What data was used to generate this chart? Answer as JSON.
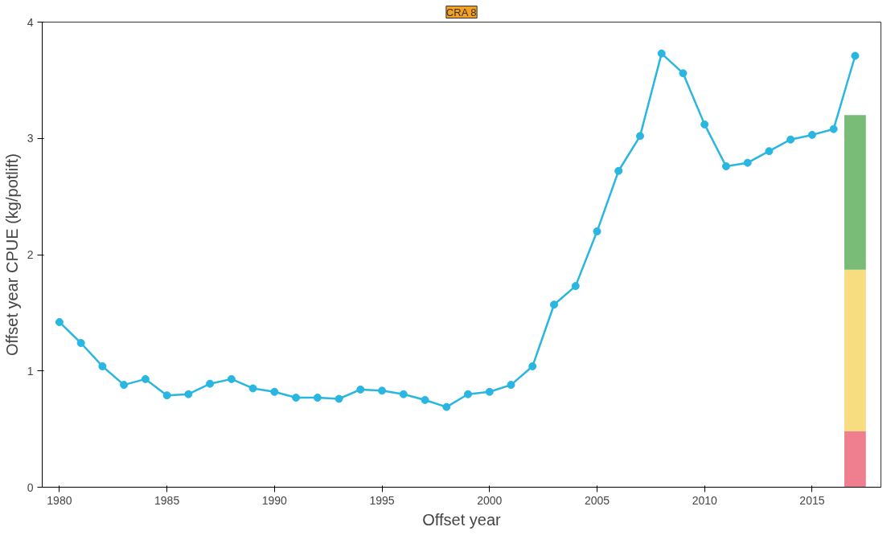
{
  "chart_data": {
    "type": "line",
    "title": "CRA 8",
    "xlabel": "Offset year",
    "ylabel": "Offset year CPUE (kg/potlift)",
    "x": [
      1980,
      1981,
      1982,
      1983,
      1984,
      1985,
      1986,
      1987,
      1988,
      1989,
      1990,
      1991,
      1992,
      1993,
      1994,
      1995,
      1996,
      1997,
      1998,
      1999,
      2000,
      2001,
      2002,
      2003,
      2004,
      2005,
      2006,
      2007,
      2008,
      2009,
      2010,
      2011,
      2012,
      2013,
      2014,
      2015,
      2016,
      2017
    ],
    "series": [
      {
        "type": "line",
        "color": "#29b6e0",
        "values": [
          1.42,
          1.24,
          1.04,
          0.88,
          0.93,
          0.79,
          0.8,
          0.89,
          0.93,
          0.85,
          0.82,
          0.77,
          0.77,
          0.76,
          0.84,
          0.83,
          0.8,
          0.75,
          0.69,
          0.8,
          0.82,
          0.88,
          1.04,
          1.57,
          1.73,
          2.2,
          2.72,
          3.02,
          3.73,
          3.56,
          3.12,
          2.76,
          2.79,
          2.89,
          2.99,
          3.03,
          3.08,
          3.71
        ]
      },
      {
        "type": "bar",
        "color": "#ef7f8f",
        "base": [
          null,
          null,
          null,
          null,
          null,
          null,
          null,
          null,
          null,
          null,
          null,
          null,
          null,
          null,
          null,
          null,
          null,
          null,
          null,
          null,
          null,
          null,
          null,
          null,
          null,
          null,
          null,
          null,
          null,
          null,
          null,
          null,
          null,
          null,
          null,
          null,
          null,
          0
        ],
        "values": [
          null,
          null,
          null,
          null,
          null,
          null,
          null,
          null,
          null,
          null,
          null,
          null,
          null,
          null,
          null,
          null,
          null,
          null,
          null,
          null,
          null,
          null,
          null,
          null,
          null,
          null,
          null,
          null,
          null,
          null,
          null,
          null,
          null,
          null,
          null,
          null,
          null,
          0.48
        ]
      },
      {
        "type": "bar",
        "color": "#f8dc80",
        "base": [
          null,
          null,
          null,
          null,
          null,
          null,
          null,
          null,
          null,
          null,
          null,
          null,
          null,
          null,
          null,
          null,
          null,
          null,
          null,
          null,
          null,
          null,
          null,
          null,
          null,
          null,
          null,
          null,
          null,
          null,
          null,
          null,
          null,
          null,
          null,
          null,
          null,
          0.48
        ],
        "values": [
          null,
          null,
          null,
          null,
          null,
          null,
          null,
          null,
          null,
          null,
          null,
          null,
          null,
          null,
          null,
          null,
          null,
          null,
          null,
          null,
          null,
          null,
          null,
          null,
          null,
          null,
          null,
          null,
          null,
          null,
          null,
          null,
          null,
          null,
          null,
          null,
          null,
          1.39
        ]
      },
      {
        "type": "bar",
        "color": "#78bc78",
        "base": [
          null,
          null,
          null,
          null,
          null,
          null,
          null,
          null,
          null,
          null,
          null,
          null,
          null,
          null,
          null,
          null,
          null,
          null,
          null,
          null,
          null,
          null,
          null,
          null,
          null,
          null,
          null,
          null,
          null,
          null,
          null,
          null,
          null,
          null,
          null,
          null,
          null,
          1.87
        ],
        "values": [
          null,
          null,
          null,
          null,
          null,
          null,
          null,
          null,
          null,
          null,
          null,
          null,
          null,
          null,
          null,
          null,
          null,
          null,
          null,
          null,
          null,
          null,
          null,
          null,
          null,
          null,
          null,
          null,
          null,
          null,
          null,
          null,
          null,
          null,
          null,
          null,
          null,
          1.33
        ]
      }
    ],
    "xlim": [
      1979.2,
      2018.2
    ],
    "ylim": [
      0,
      4
    ],
    "xticks": [
      1980,
      1985,
      1990,
      1995,
      2000,
      2005,
      2010,
      2015
    ],
    "yticks": [
      0,
      1,
      2,
      3,
      4
    ],
    "grid": false,
    "marker": "circle",
    "line_style": "solid"
  }
}
